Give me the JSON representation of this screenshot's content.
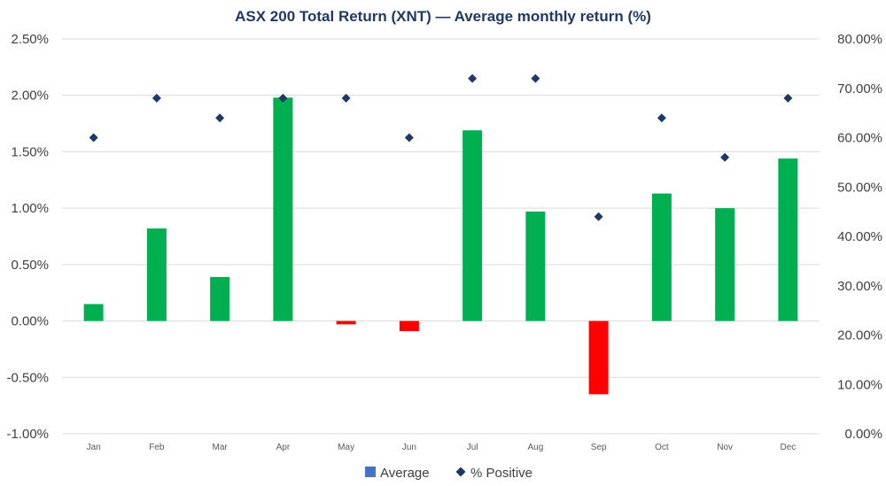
{
  "chart_data": {
    "type": "bar",
    "title": "ASX 200 Total Return (XNT) — Average monthly return (%)",
    "categories": [
      "Jan",
      "Feb",
      "Mar",
      "Apr",
      "May",
      "Jun",
      "Jul",
      "Aug",
      "Sep",
      "Oct",
      "Nov",
      "Dec"
    ],
    "series": [
      {
        "name": "Average",
        "type": "bar",
        "axis": "left",
        "values": [
          0.15,
          0.82,
          0.39,
          1.98,
          -0.03,
          -0.09,
          1.69,
          0.97,
          -0.65,
          1.13,
          1.0,
          1.44
        ]
      },
      {
        "name": "% Positive",
        "type": "scatter",
        "axis": "right",
        "marker": "diamond",
        "values": [
          60,
          68,
          64,
          68,
          68,
          60,
          72,
          72,
          44,
          64,
          56,
          68
        ]
      }
    ],
    "y_left": {
      "min": -1.0,
      "max": 2.5,
      "step": 0.5,
      "tick_labels": [
        "-1.00%",
        "-0.50%",
        "0.00%",
        "0.50%",
        "1.00%",
        "1.50%",
        "2.00%",
        "2.50%"
      ]
    },
    "y_right": {
      "min": 0,
      "max": 80,
      "step": 10,
      "tick_labels": [
        "0.00%",
        "10.00%",
        "20.00%",
        "30.00%",
        "40.00%",
        "50.00%",
        "60.00%",
        "70.00%",
        "80.00%"
      ]
    },
    "grid": true,
    "legend_position": "bottom",
    "colors": {
      "positive_bar": "#00b050",
      "negative_bar": "#ff0000",
      "marker": "#1f3864",
      "legend_average": "#4472c4",
      "grid": "#d9d9d9"
    }
  }
}
